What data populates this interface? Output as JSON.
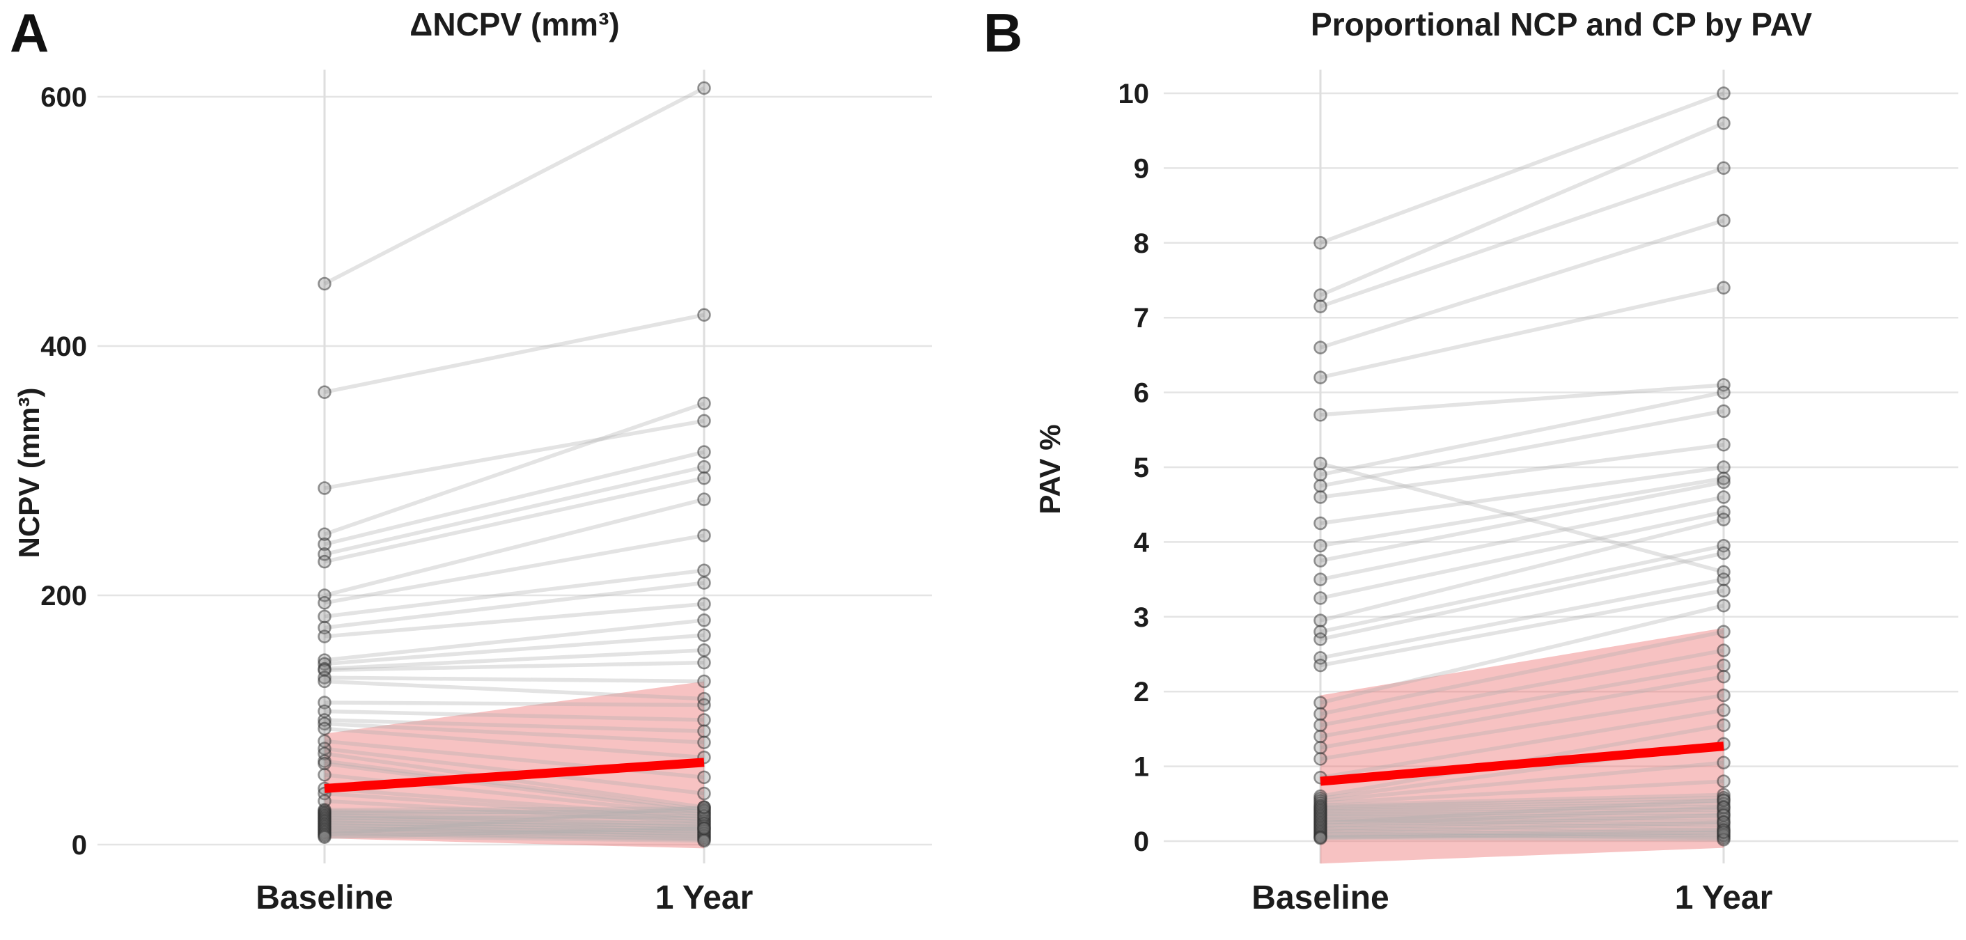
{
  "figure": {
    "background": "#ffffff",
    "text_color": "#1c1c1c"
  },
  "chart_data": [
    {
      "type": "line",
      "subtype": "paired-spaghetti-dotplot",
      "panel_label": "A",
      "title": "ΔNCPV (mm³)",
      "ylabel": "NCPV (mm³)",
      "categories": [
        "Baseline",
        "1 Year"
      ],
      "yticks": [
        0,
        200,
        400,
        600
      ],
      "ylim": [
        -20,
        625
      ],
      "grid": true,
      "legend": "none",
      "mean_line": {
        "baseline": 45,
        "year1": 66
      },
      "ci_band": {
        "baseline": [
          5,
          89
        ],
        "year1": [
          -3,
          131
        ]
      },
      "pairs": [
        [
          450,
          607
        ],
        [
          363,
          425
        ],
        [
          286,
          340
        ],
        [
          249,
          354
        ],
        [
          241,
          315
        ],
        [
          233,
          303
        ],
        [
          227,
          294
        ],
        [
          200,
          277
        ],
        [
          194,
          248
        ],
        [
          183,
          220
        ],
        [
          174,
          210
        ],
        [
          167,
          193
        ],
        [
          148,
          180
        ],
        [
          145,
          168
        ],
        [
          141,
          156
        ],
        [
          140,
          146
        ],
        [
          134,
          131
        ],
        [
          131,
          117
        ],
        [
          114,
          112
        ],
        [
          107,
          100
        ],
        [
          100,
          91
        ],
        [
          97,
          82
        ],
        [
          93,
          70
        ],
        [
          83,
          54
        ],
        [
          77,
          41
        ],
        [
          73,
          30
        ],
        [
          67,
          28
        ],
        [
          65,
          26
        ],
        [
          56,
          24
        ],
        [
          45,
          22
        ],
        [
          41,
          20
        ],
        [
          35,
          18
        ],
        [
          28,
          29
        ],
        [
          27,
          25
        ],
        [
          26,
          21
        ],
        [
          25,
          27
        ],
        [
          24,
          16
        ],
        [
          23,
          19
        ],
        [
          22,
          14
        ],
        [
          21,
          23
        ],
        [
          20,
          12
        ],
        [
          19,
          17
        ],
        [
          18,
          10
        ],
        [
          17,
          15
        ],
        [
          16,
          8
        ],
        [
          15,
          13
        ],
        [
          14,
          6
        ],
        [
          13,
          11
        ],
        [
          12,
          9
        ],
        [
          11,
          7
        ],
        [
          10,
          5
        ],
        [
          9,
          4
        ],
        [
          8,
          30
        ],
        [
          7,
          3
        ],
        [
          6,
          13
        ]
      ],
      "colors": {
        "mean_line": "#fe0000",
        "ci_band": "rgba(235,110,110,0.42)",
        "pair_line": "rgba(175,175,175,0.35)",
        "point_fill": "rgba(130,130,130,0.32)",
        "point_stroke": "rgba(45,45,45,0.5)",
        "grid": "#e4e4e4"
      }
    },
    {
      "type": "line",
      "subtype": "paired-spaghetti-dotplot",
      "panel_label": "B",
      "title": "Proportional NCP and CP by PAV",
      "ylabel": "PAV  %",
      "categories": [
        "Baseline",
        "1 Year"
      ],
      "yticks": [
        0,
        1,
        2,
        3,
        4,
        5,
        6,
        7,
        8,
        9,
        10
      ],
      "ylim": [
        -0.4,
        10.4
      ],
      "grid": true,
      "legend": "none",
      "mean_line": {
        "baseline": 0.8,
        "year1": 1.27
      },
      "ci_band": {
        "baseline": [
          -0.3,
          1.95
        ],
        "year1": [
          -0.09,
          2.85
        ]
      },
      "pairs": [
        [
          8.0,
          10.0
        ],
        [
          7.3,
          9.6
        ],
        [
          7.15,
          9.0
        ],
        [
          6.6,
          8.3
        ],
        [
          6.2,
          7.4
        ],
        [
          5.7,
          6.1
        ],
        [
          5.05,
          3.6
        ],
        [
          4.9,
          6.0
        ],
        [
          4.75,
          5.75
        ],
        [
          4.6,
          5.3
        ],
        [
          4.25,
          5.0
        ],
        [
          3.95,
          4.85
        ],
        [
          3.75,
          4.8
        ],
        [
          3.5,
          4.6
        ],
        [
          3.25,
          4.4
        ],
        [
          2.95,
          4.3
        ],
        [
          2.8,
          3.95
        ],
        [
          2.7,
          3.85
        ],
        [
          2.45,
          3.5
        ],
        [
          2.35,
          3.35
        ],
        [
          1.85,
          3.15
        ],
        [
          1.7,
          2.8
        ],
        [
          1.55,
          2.55
        ],
        [
          1.4,
          2.35
        ],
        [
          1.25,
          2.2
        ],
        [
          1.1,
          1.95
        ],
        [
          0.85,
          1.75
        ],
        [
          0.6,
          1.55
        ],
        [
          0.57,
          1.3
        ],
        [
          0.54,
          1.05
        ],
        [
          0.51,
          0.8
        ],
        [
          0.48,
          0.62
        ],
        [
          0.46,
          0.58
        ],
        [
          0.44,
          0.54
        ],
        [
          0.42,
          0.5
        ],
        [
          0.4,
          0.46
        ],
        [
          0.38,
          0.42
        ],
        [
          0.36,
          0.38
        ],
        [
          0.34,
          0.34
        ],
        [
          0.32,
          0.3
        ],
        [
          0.3,
          0.26
        ],
        [
          0.28,
          0.22
        ],
        [
          0.26,
          0.18
        ],
        [
          0.24,
          0.55
        ],
        [
          0.22,
          0.14
        ],
        [
          0.2,
          0.45
        ],
        [
          0.18,
          0.1
        ],
        [
          0.16,
          0.35
        ],
        [
          0.14,
          0.06
        ],
        [
          0.12,
          0.25
        ],
        [
          0.1,
          0.04
        ],
        [
          0.08,
          0.15
        ],
        [
          0.06,
          0.08
        ],
        [
          0.05,
          0.02
        ],
        [
          0.04,
          0.12
        ]
      ],
      "colors": {
        "mean_line": "#fe0000",
        "ci_band": "rgba(235,110,110,0.42)",
        "pair_line": "rgba(175,175,175,0.35)",
        "point_fill": "rgba(130,130,130,0.32)",
        "point_stroke": "rgba(45,45,45,0.5)",
        "grid": "#e4e4e4"
      }
    }
  ]
}
